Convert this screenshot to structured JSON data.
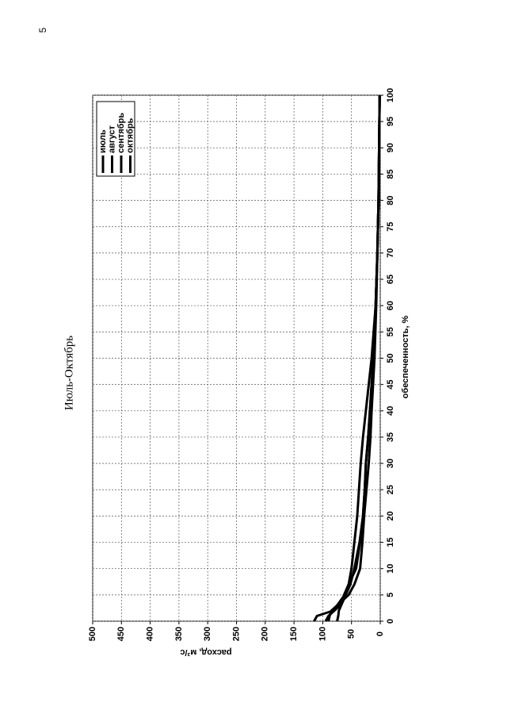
{
  "page_number": "5",
  "chart_data": {
    "type": "line",
    "title": "Июль-Октябрь",
    "x_label": "обеспеченность, %",
    "y_label": "расход, м³/с",
    "x": [
      0,
      1,
      2,
      3,
      5,
      7,
      10,
      15,
      20,
      25,
      30,
      35,
      40,
      50,
      60,
      70,
      80,
      90,
      100
    ],
    "series": [
      {
        "name": "июль",
        "color": "#000000",
        "values": [
          115,
          110,
          82,
          75,
          62,
          55,
          50,
          45,
          40,
          37,
          34,
          30,
          25,
          15,
          8,
          5,
          3,
          2,
          1
        ]
      },
      {
        "name": "август",
        "color": "#000000",
        "values": [
          95,
          90,
          80,
          70,
          63,
          55,
          42,
          35,
          30,
          27,
          25,
          21,
          18,
          12,
          8,
          5,
          3,
          2,
          1
        ]
      },
      {
        "name": "сентябрь",
        "color": "#000000",
        "values": [
          90,
          88,
          85,
          75,
          55,
          45,
          35,
          31,
          28,
          24,
          20,
          17,
          15,
          10,
          7,
          5,
          3,
          2,
          1
        ]
      },
      {
        "name": "октябрь",
        "color": "#000000",
        "values": [
          75,
          73,
          72,
          68,
          60,
          52,
          45,
          36,
          30,
          27,
          25,
          21,
          18,
          12,
          8,
          5,
          3,
          2,
          1
        ]
      }
    ],
    "xlim": [
      0,
      100
    ],
    "xticks": [
      0,
      5,
      10,
      15,
      20,
      25,
      30,
      35,
      40,
      45,
      50,
      55,
      60,
      65,
      70,
      75,
      80,
      85,
      90,
      95,
      100
    ],
    "ylim": [
      0,
      500
    ],
    "yticks": [
      0,
      50,
      100,
      150,
      200,
      250,
      300,
      350,
      400,
      450,
      500
    ],
    "grid": true,
    "legend": "upper left"
  }
}
